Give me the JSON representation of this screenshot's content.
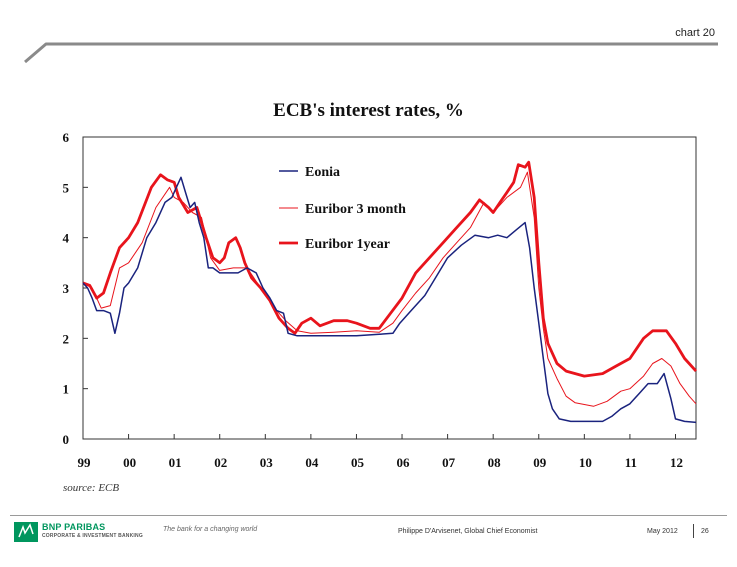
{
  "slide_label": "chart 20",
  "footer": {
    "brand": "BNP PARIBAS",
    "division": "CORPORATE & INVESTMENT BANKING",
    "tagline": "The bank for a changing world",
    "author": "Philippe D'Arvisenet, Global Chief Economist",
    "date": "May 2012",
    "page": "26"
  },
  "colors": {
    "accent_green": "#00965e",
    "eonia": "#1a237e",
    "euribor": "#e8141c"
  },
  "chart_data": {
    "type": "line",
    "title": "ECB's interest rates, %",
    "source": "source: ECB",
    "x_tick_labels": [
      "99",
      "00",
      "01",
      "02",
      "03",
      "04",
      "05",
      "06",
      "07",
      "08",
      "09",
      "10",
      "11",
      "12"
    ],
    "y_tick_labels": [
      "0",
      "1",
      "2",
      "3",
      "4",
      "5",
      "6"
    ],
    "xlim": [
      1999.0,
      2012.45
    ],
    "ylim": [
      0,
      6
    ],
    "grid": false,
    "legend_position": "upper-middle",
    "series": [
      {
        "name": "Eonia",
        "color": "#1a237e",
        "width": 1.5,
        "points": [
          [
            1999.0,
            3.1
          ],
          [
            1999.1,
            3.0
          ],
          [
            1999.2,
            2.8
          ],
          [
            1999.3,
            2.55
          ],
          [
            1999.45,
            2.55
          ],
          [
            1999.6,
            2.5
          ],
          [
            1999.7,
            2.1
          ],
          [
            1999.8,
            2.5
          ],
          [
            1999.9,
            3.0
          ],
          [
            2000.0,
            3.1
          ],
          [
            2000.2,
            3.4
          ],
          [
            2000.4,
            4.0
          ],
          [
            2000.6,
            4.3
          ],
          [
            2000.8,
            4.7
          ],
          [
            2000.95,
            4.8
          ],
          [
            2001.05,
            5.0
          ],
          [
            2001.15,
            5.2
          ],
          [
            2001.25,
            4.9
          ],
          [
            2001.35,
            4.6
          ],
          [
            2001.45,
            4.7
          ],
          [
            2001.55,
            4.3
          ],
          [
            2001.65,
            4.0
          ],
          [
            2001.75,
            3.4
          ],
          [
            2001.85,
            3.4
          ],
          [
            2002.0,
            3.3
          ],
          [
            2002.2,
            3.3
          ],
          [
            2002.4,
            3.3
          ],
          [
            2002.6,
            3.4
          ],
          [
            2002.8,
            3.3
          ],
          [
            2002.95,
            3.0
          ],
          [
            2003.1,
            2.8
          ],
          [
            2003.25,
            2.55
          ],
          [
            2003.4,
            2.5
          ],
          [
            2003.5,
            2.1
          ],
          [
            2003.7,
            2.05
          ],
          [
            2004.0,
            2.05
          ],
          [
            2004.5,
            2.05
          ],
          [
            2005.0,
            2.05
          ],
          [
            2005.5,
            2.08
          ],
          [
            2005.8,
            2.1
          ],
          [
            2005.95,
            2.3
          ],
          [
            2006.2,
            2.55
          ],
          [
            2006.5,
            2.85
          ],
          [
            2006.8,
            3.3
          ],
          [
            2007.0,
            3.6
          ],
          [
            2007.3,
            3.85
          ],
          [
            2007.6,
            4.05
          ],
          [
            2007.9,
            4.0
          ],
          [
            2008.1,
            4.05
          ],
          [
            2008.3,
            4.0
          ],
          [
            2008.5,
            4.15
          ],
          [
            2008.7,
            4.3
          ],
          [
            2008.8,
            3.8
          ],
          [
            2008.9,
            3.0
          ],
          [
            2009.0,
            2.3
          ],
          [
            2009.1,
            1.6
          ],
          [
            2009.2,
            0.9
          ],
          [
            2009.3,
            0.6
          ],
          [
            2009.45,
            0.4
          ],
          [
            2009.7,
            0.35
          ],
          [
            2010.0,
            0.35
          ],
          [
            2010.4,
            0.35
          ],
          [
            2010.6,
            0.45
          ],
          [
            2010.8,
            0.6
          ],
          [
            2011.0,
            0.7
          ],
          [
            2011.2,
            0.9
          ],
          [
            2011.4,
            1.1
          ],
          [
            2011.6,
            1.1
          ],
          [
            2011.75,
            1.3
          ],
          [
            2011.9,
            0.8
          ],
          [
            2012.0,
            0.4
          ],
          [
            2012.2,
            0.35
          ],
          [
            2012.45,
            0.33
          ]
        ]
      },
      {
        "name": "Euribor 3 month",
        "color": "#e8141c",
        "width": 1,
        "points": [
          [
            1999.0,
            3.1
          ],
          [
            1999.2,
            3.0
          ],
          [
            1999.4,
            2.6
          ],
          [
            1999.6,
            2.65
          ],
          [
            1999.8,
            3.4
          ],
          [
            2000.0,
            3.5
          ],
          [
            2000.3,
            3.9
          ],
          [
            2000.6,
            4.6
          ],
          [
            2000.9,
            5.0
          ],
          [
            2001.0,
            4.8
          ],
          [
            2001.2,
            4.7
          ],
          [
            2001.4,
            4.5
          ],
          [
            2001.6,
            4.4
          ],
          [
            2001.8,
            3.6
          ],
          [
            2002.0,
            3.35
          ],
          [
            2002.3,
            3.4
          ],
          [
            2002.6,
            3.4
          ],
          [
            2002.9,
            3.0
          ],
          [
            2003.2,
            2.6
          ],
          [
            2003.45,
            2.35
          ],
          [
            2003.7,
            2.15
          ],
          [
            2004.0,
            2.1
          ],
          [
            2004.5,
            2.12
          ],
          [
            2005.0,
            2.15
          ],
          [
            2005.5,
            2.12
          ],
          [
            2005.8,
            2.3
          ],
          [
            2006.0,
            2.55
          ],
          [
            2006.3,
            2.9
          ],
          [
            2006.6,
            3.2
          ],
          [
            2006.9,
            3.6
          ],
          [
            2007.2,
            3.9
          ],
          [
            2007.5,
            4.2
          ],
          [
            2007.8,
            4.7
          ],
          [
            2008.0,
            4.5
          ],
          [
            2008.3,
            4.8
          ],
          [
            2008.6,
            5.0
          ],
          [
            2008.75,
            5.3
          ],
          [
            2008.9,
            4.4
          ],
          [
            2009.0,
            3.0
          ],
          [
            2009.1,
            2.2
          ],
          [
            2009.2,
            1.6
          ],
          [
            2009.4,
            1.2
          ],
          [
            2009.6,
            0.85
          ],
          [
            2009.8,
            0.72
          ],
          [
            2010.2,
            0.65
          ],
          [
            2010.5,
            0.75
          ],
          [
            2010.8,
            0.95
          ],
          [
            2011.0,
            1.0
          ],
          [
            2011.3,
            1.25
          ],
          [
            2011.5,
            1.5
          ],
          [
            2011.7,
            1.6
          ],
          [
            2011.9,
            1.45
          ],
          [
            2012.1,
            1.1
          ],
          [
            2012.3,
            0.85
          ],
          [
            2012.45,
            0.7
          ]
        ]
      },
      {
        "name": "Euribor 1year",
        "color": "#e8141c",
        "width": 2.8,
        "points": [
          [
            1999.0,
            3.1
          ],
          [
            1999.15,
            3.05
          ],
          [
            1999.3,
            2.8
          ],
          [
            1999.45,
            2.9
          ],
          [
            1999.6,
            3.3
          ],
          [
            1999.8,
            3.8
          ],
          [
            2000.0,
            4.0
          ],
          [
            2000.2,
            4.3
          ],
          [
            2000.5,
            5.0
          ],
          [
            2000.7,
            5.25
          ],
          [
            2000.85,
            5.15
          ],
          [
            2001.0,
            5.1
          ],
          [
            2001.1,
            4.8
          ],
          [
            2001.3,
            4.5
          ],
          [
            2001.5,
            4.6
          ],
          [
            2001.7,
            4.0
          ],
          [
            2001.85,
            3.6
          ],
          [
            2002.0,
            3.5
          ],
          [
            2002.1,
            3.6
          ],
          [
            2002.2,
            3.9
          ],
          [
            2002.35,
            4.0
          ],
          [
            2002.45,
            3.8
          ],
          [
            2002.55,
            3.5
          ],
          [
            2002.7,
            3.2
          ],
          [
            2002.9,
            3.0
          ],
          [
            2003.1,
            2.75
          ],
          [
            2003.3,
            2.4
          ],
          [
            2003.5,
            2.2
          ],
          [
            2003.65,
            2.1
          ],
          [
            2003.8,
            2.3
          ],
          [
            2004.0,
            2.4
          ],
          [
            2004.2,
            2.25
          ],
          [
            2004.5,
            2.35
          ],
          [
            2004.8,
            2.35
          ],
          [
            2005.0,
            2.3
          ],
          [
            2005.3,
            2.2
          ],
          [
            2005.5,
            2.2
          ],
          [
            2005.75,
            2.5
          ],
          [
            2006.0,
            2.8
          ],
          [
            2006.3,
            3.3
          ],
          [
            2006.6,
            3.6
          ],
          [
            2006.9,
            3.9
          ],
          [
            2007.2,
            4.2
          ],
          [
            2007.5,
            4.5
          ],
          [
            2007.7,
            4.75
          ],
          [
            2007.9,
            4.6
          ],
          [
            2008.0,
            4.5
          ],
          [
            2008.15,
            4.7
          ],
          [
            2008.3,
            4.9
          ],
          [
            2008.45,
            5.1
          ],
          [
            2008.55,
            5.45
          ],
          [
            2008.7,
            5.4
          ],
          [
            2008.78,
            5.5
          ],
          [
            2008.9,
            4.8
          ],
          [
            2009.0,
            3.5
          ],
          [
            2009.1,
            2.4
          ],
          [
            2009.2,
            1.9
          ],
          [
            2009.4,
            1.5
          ],
          [
            2009.6,
            1.35
          ],
          [
            2010.0,
            1.25
          ],
          [
            2010.4,
            1.3
          ],
          [
            2010.7,
            1.45
          ],
          [
            2011.0,
            1.6
          ],
          [
            2011.3,
            2.0
          ],
          [
            2011.5,
            2.15
          ],
          [
            2011.8,
            2.15
          ],
          [
            2012.0,
            1.9
          ],
          [
            2012.2,
            1.6
          ],
          [
            2012.45,
            1.35
          ]
        ]
      }
    ]
  }
}
